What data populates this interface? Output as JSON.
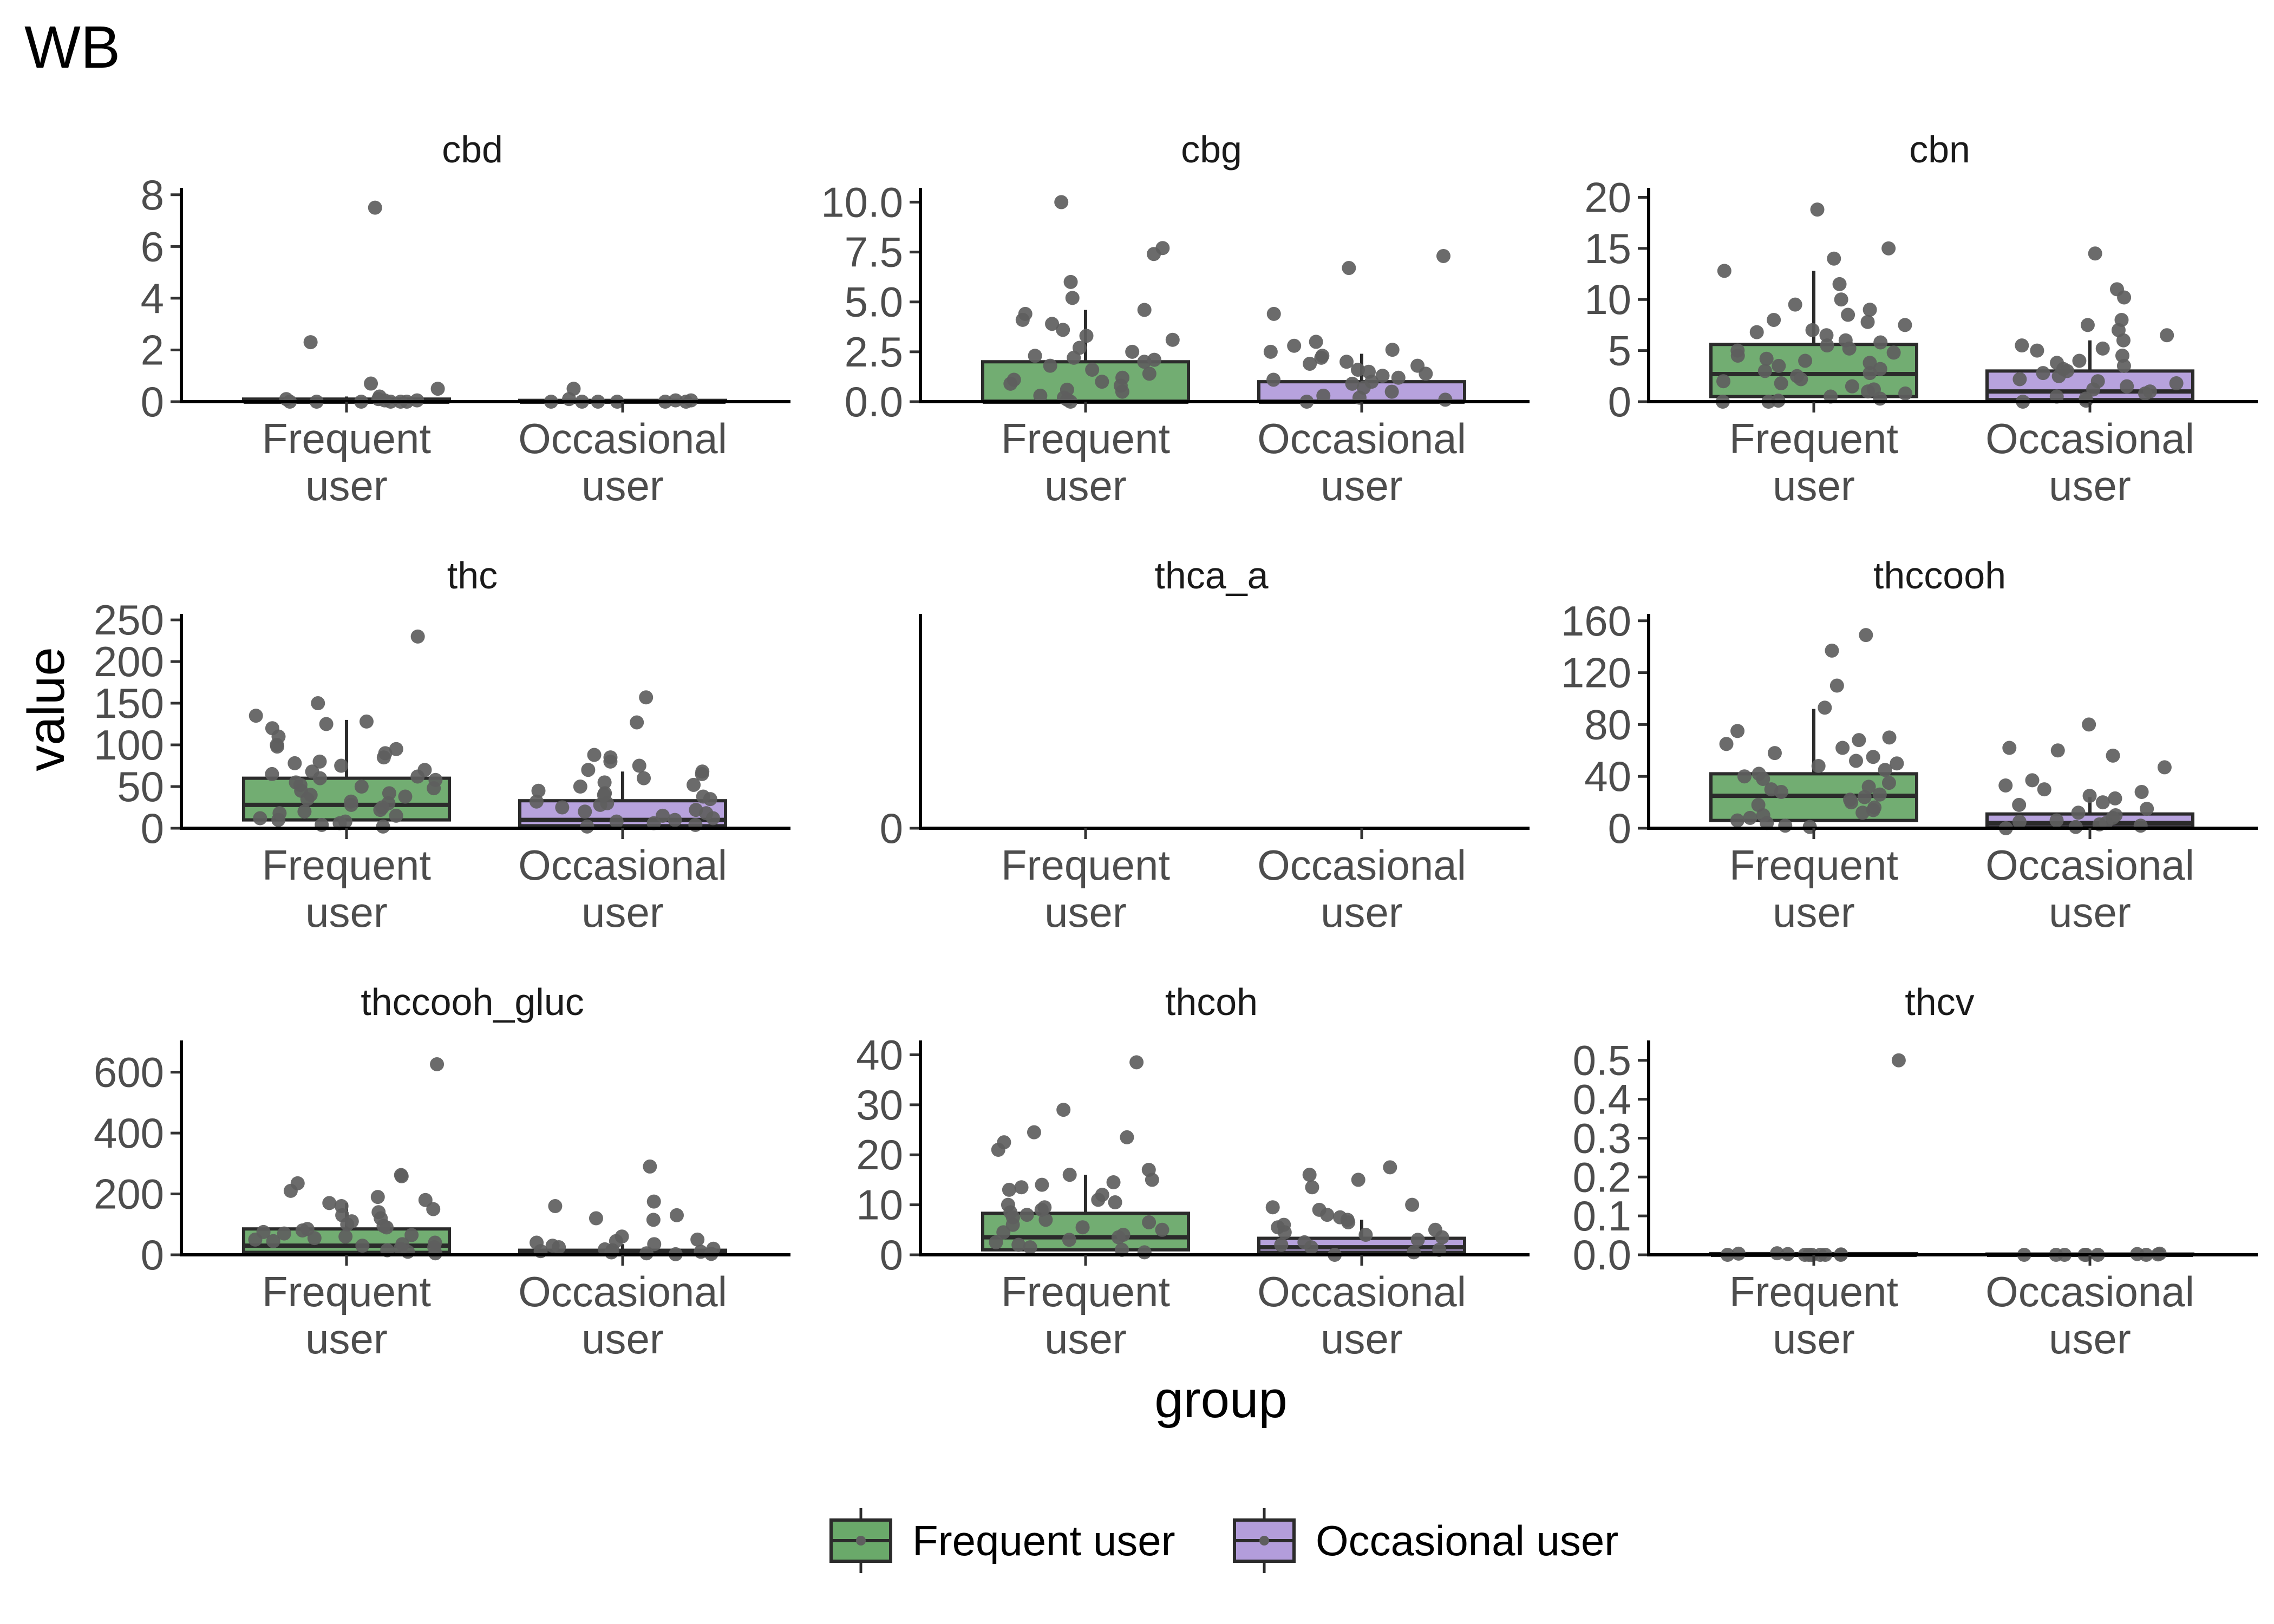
{
  "chart_data": {
    "type": "box",
    "title": "WB",
    "xlabel": "group",
    "ylabel": "value",
    "categories": [
      "Frequent user",
      "Occasional user"
    ],
    "category_lines": [
      [
        "Frequent",
        "user"
      ],
      [
        "Occasional",
        "user"
      ]
    ],
    "legend": {
      "position": "bottom",
      "entries": [
        {
          "name": "Frequent user",
          "color": "#6aa96a"
        },
        {
          "name": "Occasional user",
          "color": "#b39ddb"
        }
      ]
    },
    "colors": {
      "frequent": "#6aa96a",
      "occasional": "#b39ddb",
      "points": "#5e5e5e",
      "box_edge": "#2b2b2b"
    },
    "panels": [
      {
        "name": "cbd",
        "ylim": [
          0,
          8.1
        ],
        "yticks": [
          0,
          2,
          4,
          6,
          8
        ],
        "ytick_labels": [
          "0",
          "2",
          "4",
          "6",
          "8"
        ],
        "boxes": [
          {
            "category": "Frequent user",
            "q1": 0,
            "median": 0,
            "q3": 0.1,
            "whisker_high": 0.2
          },
          {
            "category": "Occasional user",
            "q1": 0,
            "median": 0,
            "q3": 0.05,
            "whisker_high": 0.1
          }
        ],
        "points": [
          {
            "category": "Frequent user",
            "values": [
              7.5,
              2.3,
              0.7,
              0.5,
              0.2,
              0.1,
              0.1,
              0.05,
              0.05,
              0,
              0,
              0,
              0,
              0,
              0
            ]
          },
          {
            "category": "Occasional user",
            "values": [
              0.5,
              0.1,
              0.05,
              0.05,
              0,
              0,
              0,
              0,
              0,
              0
            ]
          }
        ]
      },
      {
        "name": "cbg",
        "ylim": [
          0,
          10.5
        ],
        "yticks": [
          0,
          2.5,
          5,
          7.5,
          10
        ],
        "ytick_labels": [
          "0.0",
          "2.5",
          "5.0",
          "7.5",
          "10.0"
        ],
        "boxes": [
          {
            "category": "Frequent user",
            "q1": 0,
            "median": 0,
            "q3": 2.0,
            "whisker_high": 4.6
          },
          {
            "category": "Occasional user",
            "q1": 0,
            "median": 0,
            "q3": 1.0,
            "whisker_high": 2.4
          }
        ],
        "points": [
          {
            "category": "Frequent user",
            "values": [
              10.0,
              7.7,
              7.4,
              6.0,
              5.2,
              4.6,
              4.4,
              4.1,
              3.9,
              3.6,
              3.3,
              3.1,
              2.7,
              2.5,
              2.3,
              2.2,
              2.1,
              2.0,
              1.8,
              1.6,
              1.4,
              1.2,
              1.1,
              1.0,
              0.9,
              0.8,
              0.6,
              0.5,
              0.3,
              0.2,
              0.1,
              0
            ]
          },
          {
            "category": "Occasional user",
            "values": [
              7.3,
              6.7,
              4.4,
              3.0,
              2.8,
              2.6,
              2.5,
              2.3,
              2.2,
              2.0,
              1.9,
              1.8,
              1.6,
              1.5,
              1.4,
              1.3,
              1.2,
              1.1,
              1.0,
              0.9,
              0.7,
              0.5,
              0.3,
              0.2,
              0.1,
              0
            ]
          }
        ]
      },
      {
        "name": "cbn",
        "ylim": [
          0,
          20.5
        ],
        "yticks": [
          0,
          5,
          10,
          15,
          20
        ],
        "ytick_labels": [
          "0",
          "5",
          "10",
          "15",
          "20"
        ],
        "boxes": [
          {
            "category": "Frequent user",
            "q1": 0.5,
            "median": 2.7,
            "q3": 5.6,
            "whisker_high": 12.8
          },
          {
            "category": "Occasional user",
            "q1": 0.2,
            "median": 1.0,
            "q3": 3.0,
            "whisker_high": 6.0
          }
        ],
        "points": [
          {
            "category": "Frequent user",
            "values": [
              18.8,
              15.0,
              14.0,
              12.8,
              11.5,
              10.0,
              9.5,
              9.0,
              8.5,
              8.0,
              7.8,
              7.5,
              7.0,
              6.8,
              6.5,
              6.0,
              5.8,
              5.5,
              5.2,
              5.0,
              4.8,
              4.5,
              4.2,
              4.0,
              3.8,
              3.5,
              3.2,
              3.0,
              2.8,
              2.5,
              2.2,
              2.0,
              1.8,
              1.5,
              1.2,
              1.0,
              0.8,
              0.5,
              0.3,
              0.1,
              0,
              0
            ]
          },
          {
            "category": "Occasional user",
            "values": [
              14.5,
              11.0,
              10.2,
              8.0,
              7.5,
              7.0,
              6.5,
              6.0,
              5.5,
              5.2,
              5.0,
              4.5,
              4.0,
              3.8,
              3.5,
              3.2,
              3.0,
              2.8,
              2.5,
              2.2,
              2.0,
              1.8,
              1.5,
              1.2,
              1.0,
              0.8,
              0.5,
              0.3,
              0.1,
              0
            ]
          }
        ]
      },
      {
        "name": "thc",
        "ylim": [
          0,
          252
        ],
        "yticks": [
          0,
          50,
          100,
          150,
          200,
          250
        ],
        "ytick_labels": [
          "0",
          "50",
          "100",
          "150",
          "200",
          "250"
        ],
        "boxes": [
          {
            "category": "Frequent user",
            "q1": 10,
            "median": 28,
            "q3": 60,
            "whisker_high": 130
          },
          {
            "category": "Occasional user",
            "q1": 3,
            "median": 10,
            "q3": 33,
            "whisker_high": 68
          }
        ],
        "points": [
          {
            "category": "Frequent user",
            "values": [
              230,
              150,
              135,
              128,
              125,
              120,
              110,
              100,
              98,
              95,
              90,
              85,
              80,
              78,
              75,
              70,
              68,
              65,
              62,
              60,
              58,
              55,
              52,
              50,
              48,
              45,
              42,
              40,
              38,
              35,
              32,
              30,
              28,
              25,
              22,
              20,
              18,
              15,
              12,
              10,
              8,
              6,
              4,
              2
            ]
          },
          {
            "category": "Occasional user",
            "values": [
              157,
              127,
              88,
              85,
              80,
              75,
              70,
              68,
              65,
              60,
              55,
              52,
              50,
              45,
              42,
              40,
              38,
              35,
              32,
              30,
              28,
              25,
              22,
              20,
              18,
              15,
              12,
              10,
              8,
              6,
              4,
              2
            ]
          }
        ]
      },
      {
        "name": "thca_a",
        "ylim": [
          0,
          1
        ],
        "yticks": [
          0
        ],
        "ytick_labels": [
          "0"
        ],
        "boxes": [],
        "points": []
      },
      {
        "name": "thccooh",
        "ylim": [
          0,
          162
        ],
        "yticks": [
          0,
          40,
          80,
          120,
          160
        ],
        "ytick_labels": [
          "0",
          "40",
          "80",
          "120",
          "160"
        ],
        "boxes": [
          {
            "category": "Frequent user",
            "q1": 6,
            "median": 25,
            "q3": 42,
            "whisker_high": 92
          },
          {
            "category": "Occasional user",
            "q1": 1,
            "median": 4,
            "q3": 11,
            "whisker_high": 24
          }
        ],
        "points": [
          {
            "category": "Frequent user",
            "values": [
              149,
              137,
              110,
              93,
              75,
              70,
              68,
              65,
              62,
              58,
              55,
              52,
              50,
              48,
              45,
              42,
              40,
              38,
              35,
              32,
              30,
              28,
              26,
              24,
              22,
              20,
              18,
              16,
              14,
              12,
              10,
              8,
              6,
              4,
              2,
              1
            ]
          },
          {
            "category": "Occasional user",
            "values": [
              80,
              62,
              60,
              56,
              47,
              37,
              33,
              30,
              28,
              25,
              23,
              20,
              18,
              15,
              12,
              10,
              8,
              6,
              5,
              4,
              3,
              2,
              1,
              0
            ]
          }
        ]
      },
      {
        "name": "thccooh_gluc",
        "ylim": [
          0,
          690
        ],
        "yticks": [
          0,
          200,
          400,
          600
        ],
        "ytick_labels": [
          "0",
          "200",
          "400",
          "600"
        ],
        "boxes": [
          {
            "category": "Frequent user",
            "q1": 8,
            "median": 30,
            "q3": 85,
            "whisker_high": 170
          },
          {
            "category": "Occasional user",
            "q1": 2,
            "median": 5,
            "q3": 15,
            "whisker_high": 35
          }
        ],
        "points": [
          {
            "category": "Frequent user",
            "values": [
              626,
              262,
              258,
              235,
              210,
              190,
              180,
              170,
              160,
              150,
              140,
              130,
              120,
              110,
              100,
              95,
              90,
              85,
              80,
              75,
              70,
              65,
              60,
              55,
              50,
              45,
              40,
              35,
              30,
              25,
              20,
              15,
              10,
              5
            ]
          },
          {
            "category": "Occasional user",
            "values": [
              290,
              175,
              160,
              130,
              120,
              115,
              60,
              50,
              45,
              40,
              35,
              30,
              25,
              20,
              18,
              15,
              12,
              10,
              8,
              5,
              3,
              2
            ]
          }
        ]
      },
      {
        "name": "thcoh",
        "ylim": [
          0,
          42
        ],
        "yticks": [
          0,
          10,
          20,
          30,
          40
        ],
        "ytick_labels": [
          "0",
          "10",
          "20",
          "30",
          "40"
        ],
        "boxes": [
          {
            "category": "Frequent user",
            "q1": 1,
            "median": 3.5,
            "q3": 8.3,
            "whisker_high": 16
          },
          {
            "category": "Occasional user",
            "q1": 0.5,
            "median": 1.5,
            "q3": 3.3,
            "whisker_high": 7
          }
        ],
        "points": [
          {
            "category": "Frequent user",
            "values": [
              38.5,
              29,
              24.5,
              23.5,
              22.5,
              21,
              17,
              16,
              15,
              14.5,
              14,
              13.5,
              13,
              12,
              11,
              10.5,
              10,
              9.5,
              9,
              8.5,
              8,
              7.5,
              7,
              6.5,
              6,
              5.5,
              5,
              4.5,
              4,
              3.5,
              3,
              2.5,
              2,
              1.5,
              1,
              0.5
            ]
          },
          {
            "category": "Occasional user",
            "values": [
              17.5,
              16,
              15,
              13.5,
              10,
              9.5,
              9,
              8,
              7.5,
              7,
              6.5,
              6,
              5.5,
              5,
              4.5,
              4,
              3.5,
              3,
              2.5,
              2,
              1.5,
              1,
              0.5,
              0
            ]
          }
        ]
      },
      {
        "name": "thcv",
        "ylim": [
          0,
          0.54
        ],
        "yticks": [
          0,
          0.1,
          0.2,
          0.3,
          0.4,
          0.5
        ],
        "ytick_labels": [
          "0.0",
          "0.1",
          "0.2",
          "0.3",
          "0.4",
          "0.5"
        ],
        "boxes": [
          {
            "category": "Frequent user",
            "q1": 0,
            "median": 0,
            "q3": 0.003,
            "whisker_high": 0.005
          },
          {
            "category": "Occasional user",
            "q1": 0,
            "median": 0,
            "q3": 0.002,
            "whisker_high": 0.004
          }
        ],
        "points": [
          {
            "category": "Frequent user",
            "values": [
              0.5,
              0.004,
              0.003,
              0.002,
              0.001,
              0,
              0,
              0,
              0,
              0,
              0,
              0
            ]
          },
          {
            "category": "Occasional user",
            "values": [
              0.003,
              0.002,
              0.001,
              0,
              0,
              0,
              0,
              0,
              0,
              0
            ]
          }
        ]
      }
    ]
  }
}
